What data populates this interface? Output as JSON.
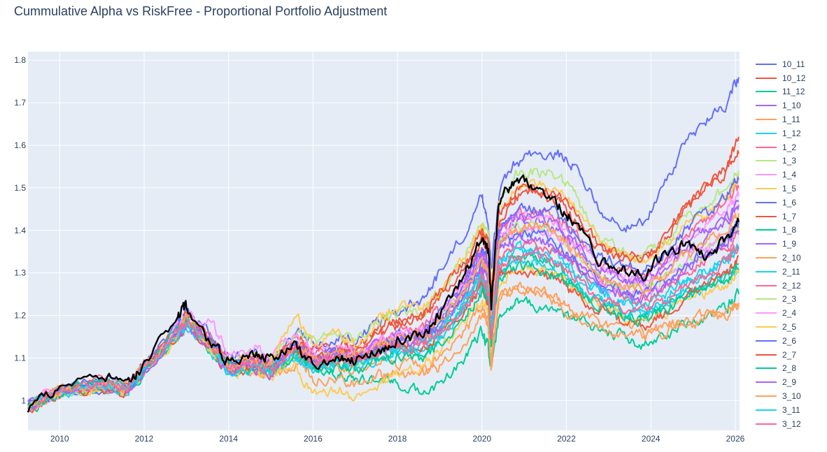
{
  "title": "Cummulative Alpha vs RiskFree - Proportional Portfolio Adjustment",
  "chart_data": {
    "type": "line",
    "title": "Cummulative Alpha vs RiskFree - Proportional Portfolio Adjustment",
    "xlabel": "",
    "ylabel": "",
    "xlim": [
      2009.25,
      2026.1
    ],
    "ylim": [
      0.93,
      1.82
    ],
    "x_ticks": [
      "2010",
      "2012",
      "2014",
      "2016",
      "2018",
      "2020",
      "2022",
      "2024",
      "2026"
    ],
    "y_ticks": [
      "1",
      "1.1",
      "1.2",
      "1.3",
      "1.4",
      "1.5",
      "1.6",
      "1.7",
      "1.8"
    ],
    "grid": true,
    "legend_position": "right",
    "x_anchor": [
      2009.25,
      2010,
      2011,
      2011.6,
      2012,
      2012.8,
      2013,
      2013.6,
      2014,
      2014.6,
      2015,
      2015.6,
      2016,
      2016.6,
      2017,
      2017.6,
      2018,
      2018.6,
      2019,
      2019.6,
      2020,
      2020.15,
      2020.22,
      2020.4,
      2020.8,
      2021.3,
      2021.8,
      2022.2,
      2022.8,
      2023.3,
      2023.8,
      2024.3,
      2024.8,
      2025.3,
      2025.8,
      2026.08
    ],
    "series": [
      {
        "name": "10_11",
        "color": "#636EFA",
        "values": [
          0.99,
          1.03,
          1.05,
          1.04,
          1.09,
          1.18,
          1.21,
          1.15,
          1.1,
          1.11,
          1.1,
          1.16,
          1.13,
          1.15,
          1.14,
          1.19,
          1.21,
          1.24,
          1.3,
          1.4,
          1.48,
          1.42,
          1.3,
          1.48,
          1.56,
          1.58,
          1.58,
          1.55,
          1.45,
          1.4,
          1.42,
          1.5,
          1.6,
          1.66,
          1.7,
          1.76
        ]
      },
      {
        "name": "10_12",
        "color": "#EF553B",
        "values": [
          0.99,
          1.02,
          1.04,
          1.03,
          1.08,
          1.17,
          1.2,
          1.14,
          1.09,
          1.1,
          1.09,
          1.15,
          1.12,
          1.13,
          1.12,
          1.17,
          1.19,
          1.2,
          1.24,
          1.31,
          1.38,
          1.35,
          1.22,
          1.42,
          1.48,
          1.49,
          1.47,
          1.42,
          1.35,
          1.34,
          1.33,
          1.37,
          1.45,
          1.5,
          1.55,
          1.62
        ]
      },
      {
        "name": "11_12",
        "color": "#00CC96",
        "values": [
          0.98,
          1.02,
          1.03,
          1.02,
          1.07,
          1.15,
          1.18,
          1.12,
          1.07,
          1.07,
          1.06,
          1.1,
          1.07,
          1.06,
          1.05,
          1.05,
          1.04,
          1.02,
          1.04,
          1.1,
          1.16,
          1.12,
          1.07,
          1.2,
          1.23,
          1.22,
          1.21,
          1.19,
          1.17,
          1.15,
          1.13,
          1.15,
          1.18,
          1.2,
          1.22,
          1.25
        ]
      },
      {
        "name": "1_10",
        "color": "#AB63FA",
        "values": [
          0.99,
          1.02,
          1.04,
          1.03,
          1.08,
          1.16,
          1.19,
          1.13,
          1.08,
          1.09,
          1.08,
          1.13,
          1.1,
          1.11,
          1.1,
          1.13,
          1.14,
          1.15,
          1.19,
          1.27,
          1.34,
          1.31,
          1.2,
          1.38,
          1.42,
          1.42,
          1.4,
          1.36,
          1.3,
          1.28,
          1.27,
          1.3,
          1.35,
          1.38,
          1.42,
          1.46
        ]
      },
      {
        "name": "1_11",
        "color": "#FFA15A",
        "values": [
          0.99,
          1.02,
          1.04,
          1.03,
          1.07,
          1.16,
          1.19,
          1.13,
          1.08,
          1.08,
          1.07,
          1.11,
          1.08,
          1.08,
          1.07,
          1.09,
          1.09,
          1.08,
          1.1,
          1.16,
          1.22,
          1.18,
          1.1,
          1.24,
          1.27,
          1.26,
          1.24,
          1.21,
          1.18,
          1.17,
          1.16,
          1.17,
          1.19,
          1.2,
          1.21,
          1.23
        ]
      },
      {
        "name": "1_12",
        "color": "#19D3F3",
        "values": [
          0.98,
          1.02,
          1.03,
          1.02,
          1.07,
          1.15,
          1.18,
          1.12,
          1.07,
          1.08,
          1.07,
          1.12,
          1.09,
          1.1,
          1.09,
          1.12,
          1.13,
          1.14,
          1.17,
          1.24,
          1.3,
          1.27,
          1.16,
          1.33,
          1.36,
          1.36,
          1.34,
          1.3,
          1.26,
          1.24,
          1.23,
          1.25,
          1.28,
          1.3,
          1.33,
          1.36
        ]
      },
      {
        "name": "1_2",
        "color": "#FF6692",
        "values": [
          0.99,
          1.03,
          1.04,
          1.03,
          1.08,
          1.17,
          1.2,
          1.14,
          1.09,
          1.1,
          1.09,
          1.14,
          1.11,
          1.12,
          1.11,
          1.15,
          1.16,
          1.17,
          1.21,
          1.28,
          1.35,
          1.32,
          1.22,
          1.4,
          1.44,
          1.44,
          1.43,
          1.39,
          1.32,
          1.3,
          1.29,
          1.32,
          1.38,
          1.42,
          1.46,
          1.5
        ]
      },
      {
        "name": "1_3",
        "color": "#B6E880",
        "values": [
          0.99,
          1.02,
          1.04,
          1.03,
          1.08,
          1.16,
          1.19,
          1.13,
          1.09,
          1.11,
          1.1,
          1.17,
          1.14,
          1.16,
          1.14,
          1.19,
          1.2,
          1.21,
          1.26,
          1.34,
          1.42,
          1.39,
          1.26,
          1.46,
          1.53,
          1.54,
          1.53,
          1.48,
          1.38,
          1.35,
          1.34,
          1.37,
          1.42,
          1.46,
          1.5,
          1.54
        ]
      },
      {
        "name": "1_4",
        "color": "#FF97FF",
        "values": [
          0.99,
          1.02,
          1.04,
          1.03,
          1.08,
          1.17,
          1.2,
          1.18,
          1.11,
          1.12,
          1.1,
          1.16,
          1.12,
          1.13,
          1.11,
          1.14,
          1.15,
          1.16,
          1.2,
          1.27,
          1.34,
          1.31,
          1.21,
          1.39,
          1.43,
          1.44,
          1.42,
          1.38,
          1.31,
          1.29,
          1.28,
          1.31,
          1.37,
          1.41,
          1.45,
          1.48
        ]
      },
      {
        "name": "1_5",
        "color": "#FECB52",
        "values": [
          0.99,
          1.02,
          1.04,
          1.03,
          1.07,
          1.16,
          1.19,
          1.13,
          1.08,
          1.09,
          1.08,
          1.2,
          1.13,
          1.16,
          1.13,
          1.2,
          1.22,
          1.22,
          1.26,
          1.34,
          1.4,
          1.37,
          1.24,
          1.46,
          1.5,
          1.51,
          1.5,
          1.46,
          1.37,
          1.34,
          1.33,
          1.36,
          1.41,
          1.44,
          1.48,
          1.52
        ]
      },
      {
        "name": "1_6",
        "color": "#636EFA",
        "values": [
          0.98,
          1.02,
          1.03,
          1.02,
          1.07,
          1.15,
          1.18,
          1.12,
          1.08,
          1.09,
          1.08,
          1.13,
          1.1,
          1.11,
          1.1,
          1.13,
          1.15,
          1.16,
          1.2,
          1.28,
          1.36,
          1.33,
          1.21,
          1.4,
          1.45,
          1.45,
          1.44,
          1.4,
          1.34,
          1.32,
          1.31,
          1.34,
          1.4,
          1.44,
          1.48,
          1.52
        ]
      },
      {
        "name": "1_7",
        "color": "#EF553B",
        "values": [
          0.99,
          1.02,
          1.04,
          1.03,
          1.08,
          1.16,
          1.2,
          1.14,
          1.09,
          1.1,
          1.09,
          1.14,
          1.11,
          1.12,
          1.11,
          1.16,
          1.18,
          1.2,
          1.25,
          1.33,
          1.4,
          1.37,
          1.25,
          1.44,
          1.49,
          1.5,
          1.48,
          1.44,
          1.36,
          1.34,
          1.33,
          1.38,
          1.45,
          1.5,
          1.54,
          1.58
        ]
      },
      {
        "name": "1_8",
        "color": "#00CC96",
        "values": [
          0.98,
          1.02,
          1.03,
          1.02,
          1.07,
          1.15,
          1.18,
          1.12,
          1.07,
          1.08,
          1.07,
          1.11,
          1.08,
          1.09,
          1.08,
          1.11,
          1.12,
          1.12,
          1.15,
          1.22,
          1.28,
          1.25,
          1.14,
          1.31,
          1.34,
          1.34,
          1.32,
          1.28,
          1.23,
          1.21,
          1.2,
          1.22,
          1.25,
          1.27,
          1.29,
          1.32
        ]
      },
      {
        "name": "1_9",
        "color": "#AB63FA",
        "values": [
          0.99,
          1.02,
          1.04,
          1.03,
          1.08,
          1.16,
          1.19,
          1.13,
          1.08,
          1.09,
          1.08,
          1.13,
          1.1,
          1.11,
          1.1,
          1.14,
          1.15,
          1.16,
          1.2,
          1.28,
          1.35,
          1.32,
          1.22,
          1.39,
          1.43,
          1.43,
          1.41,
          1.37,
          1.31,
          1.29,
          1.28,
          1.31,
          1.36,
          1.4,
          1.43,
          1.47
        ]
      },
      {
        "name": "2_10",
        "color": "#FFA15A",
        "values": [
          0.99,
          1.02,
          1.03,
          1.02,
          1.07,
          1.15,
          1.18,
          1.12,
          1.07,
          1.07,
          1.05,
          1.09,
          1.05,
          1.05,
          1.04,
          1.06,
          1.06,
          1.06,
          1.08,
          1.14,
          1.2,
          1.17,
          1.08,
          1.24,
          1.26,
          1.25,
          1.23,
          1.2,
          1.17,
          1.16,
          1.15,
          1.16,
          1.18,
          1.19,
          1.2,
          1.22
        ]
      },
      {
        "name": "2_11",
        "color": "#19D3F3",
        "values": [
          0.98,
          1.02,
          1.03,
          1.02,
          1.07,
          1.15,
          1.18,
          1.12,
          1.07,
          1.08,
          1.07,
          1.11,
          1.08,
          1.09,
          1.08,
          1.1,
          1.11,
          1.12,
          1.15,
          1.21,
          1.27,
          1.24,
          1.14,
          1.3,
          1.32,
          1.32,
          1.3,
          1.27,
          1.23,
          1.21,
          1.2,
          1.22,
          1.25,
          1.27,
          1.29,
          1.31
        ]
      },
      {
        "name": "2_12",
        "color": "#FF6692",
        "values": [
          0.99,
          1.02,
          1.04,
          1.03,
          1.07,
          1.16,
          1.19,
          1.13,
          1.08,
          1.09,
          1.08,
          1.12,
          1.09,
          1.1,
          1.09,
          1.12,
          1.13,
          1.14,
          1.17,
          1.24,
          1.3,
          1.27,
          1.17,
          1.34,
          1.37,
          1.37,
          1.35,
          1.32,
          1.27,
          1.25,
          1.24,
          1.26,
          1.3,
          1.33,
          1.36,
          1.39
        ]
      },
      {
        "name": "2_3",
        "color": "#B6E880",
        "values": [
          0.98,
          1.02,
          1.03,
          1.02,
          1.07,
          1.15,
          1.18,
          1.12,
          1.07,
          1.08,
          1.07,
          1.12,
          1.09,
          1.1,
          1.09,
          1.13,
          1.14,
          1.15,
          1.19,
          1.26,
          1.33,
          1.3,
          1.19,
          1.37,
          1.41,
          1.41,
          1.39,
          1.35,
          1.29,
          1.27,
          1.26,
          1.28,
          1.32,
          1.35,
          1.38,
          1.41
        ]
      },
      {
        "name": "2_4",
        "color": "#FF97FF",
        "values": [
          0.99,
          1.02,
          1.04,
          1.03,
          1.08,
          1.16,
          1.19,
          1.13,
          1.08,
          1.09,
          1.08,
          1.13,
          1.1,
          1.11,
          1.1,
          1.14,
          1.15,
          1.16,
          1.2,
          1.27,
          1.33,
          1.3,
          1.2,
          1.37,
          1.4,
          1.4,
          1.38,
          1.34,
          1.28,
          1.26,
          1.25,
          1.28,
          1.33,
          1.36,
          1.39,
          1.42
        ]
      },
      {
        "name": "2_5",
        "color": "#FECB52",
        "values": [
          0.98,
          1.02,
          1.03,
          1.02,
          1.07,
          1.15,
          1.18,
          1.12,
          1.07,
          1.07,
          1.04,
          1.09,
          1.01,
          1.03,
          1.0,
          1.04,
          1.06,
          1.08,
          1.12,
          1.18,
          1.24,
          1.21,
          1.13,
          1.28,
          1.31,
          1.31,
          1.29,
          1.26,
          1.22,
          1.2,
          1.18,
          1.2,
          1.23,
          1.25,
          1.27,
          1.3
        ]
      },
      {
        "name": "2_6",
        "color": "#636EFA",
        "values": [
          0.99,
          1.02,
          1.04,
          1.03,
          1.07,
          1.16,
          1.19,
          1.13,
          1.08,
          1.09,
          1.08,
          1.13,
          1.1,
          1.11,
          1.1,
          1.13,
          1.14,
          1.15,
          1.18,
          1.25,
          1.32,
          1.29,
          1.19,
          1.36,
          1.39,
          1.39,
          1.37,
          1.33,
          1.28,
          1.26,
          1.25,
          1.28,
          1.32,
          1.35,
          1.38,
          1.42
        ]
      },
      {
        "name": "2_7",
        "color": "#EF553B",
        "values": [
          0.98,
          1.02,
          1.03,
          1.02,
          1.07,
          1.15,
          1.18,
          1.12,
          1.07,
          1.08,
          1.07,
          1.12,
          1.09,
          1.1,
          1.09,
          1.12,
          1.13,
          1.13,
          1.16,
          1.22,
          1.27,
          1.24,
          1.14,
          1.3,
          1.31,
          1.3,
          1.28,
          1.25,
          1.21,
          1.19,
          1.17,
          1.2,
          1.24,
          1.27,
          1.3,
          1.34
        ]
      },
      {
        "name": "2_8",
        "color": "#00CC96",
        "values": [
          0.99,
          1.02,
          1.04,
          1.03,
          1.07,
          1.16,
          1.19,
          1.13,
          1.08,
          1.08,
          1.07,
          1.11,
          1.08,
          1.08,
          1.07,
          1.1,
          1.1,
          1.1,
          1.13,
          1.2,
          1.26,
          1.23,
          1.13,
          1.29,
          1.32,
          1.31,
          1.29,
          1.26,
          1.22,
          1.2,
          1.19,
          1.21,
          1.24,
          1.26,
          1.28,
          1.31
        ]
      },
      {
        "name": "2_9",
        "color": "#AB63FA",
        "values": [
          0.98,
          1.02,
          1.03,
          1.02,
          1.07,
          1.15,
          1.18,
          1.12,
          1.07,
          1.08,
          1.07,
          1.12,
          1.09,
          1.1,
          1.09,
          1.12,
          1.13,
          1.14,
          1.18,
          1.25,
          1.31,
          1.28,
          1.17,
          1.35,
          1.38,
          1.38,
          1.36,
          1.32,
          1.27,
          1.25,
          1.24,
          1.27,
          1.31,
          1.34,
          1.37,
          1.4
        ]
      },
      {
        "name": "3_10",
        "color": "#FFA15A",
        "values": [
          0.99,
          1.02,
          1.04,
          1.03,
          1.08,
          1.16,
          1.19,
          1.13,
          1.08,
          1.09,
          1.08,
          1.13,
          1.1,
          1.11,
          1.1,
          1.13,
          1.14,
          1.15,
          1.19,
          1.26,
          1.33,
          1.3,
          1.2,
          1.37,
          1.41,
          1.41,
          1.39,
          1.35,
          1.29,
          1.27,
          1.26,
          1.29,
          1.34,
          1.37,
          1.4,
          1.44
        ]
      },
      {
        "name": "3_11",
        "color": "#19D3F3",
        "values": [
          0.98,
          1.02,
          1.03,
          1.02,
          1.07,
          1.15,
          1.18,
          1.12,
          1.07,
          1.08,
          1.07,
          1.11,
          1.08,
          1.09,
          1.08,
          1.11,
          1.12,
          1.13,
          1.16,
          1.23,
          1.29,
          1.26,
          1.16,
          1.32,
          1.35,
          1.35,
          1.33,
          1.29,
          1.25,
          1.23,
          1.22,
          1.24,
          1.28,
          1.3,
          1.33,
          1.36
        ]
      },
      {
        "name": "3_12",
        "color": "#FF6692",
        "values": [
          0.99,
          1.02,
          1.04,
          1.03,
          1.07,
          1.16,
          1.19,
          1.13,
          1.08,
          1.09,
          1.08,
          1.12,
          1.09,
          1.1,
          1.09,
          1.12,
          1.13,
          1.13,
          1.16,
          1.22,
          1.28,
          1.25,
          1.15,
          1.31,
          1.34,
          1.34,
          1.32,
          1.29,
          1.24,
          1.22,
          1.21,
          1.23,
          1.27,
          1.3,
          1.33,
          1.36
        ]
      },
      {
        "color": "#000000",
        "values": [
          0.98,
          1.03,
          1.06,
          1.03,
          1.09,
          1.2,
          1.22,
          1.13,
          1.09,
          1.11,
          1.1,
          1.13,
          1.08,
          1.1,
          1.1,
          1.12,
          1.14,
          1.16,
          1.2,
          1.3,
          1.38,
          1.35,
          1.22,
          1.47,
          1.52,
          1.5,
          1.46,
          1.42,
          1.33,
          1.31,
          1.29,
          1.34,
          1.37,
          1.34,
          1.38,
          1.42
        ]
      }
    ]
  }
}
